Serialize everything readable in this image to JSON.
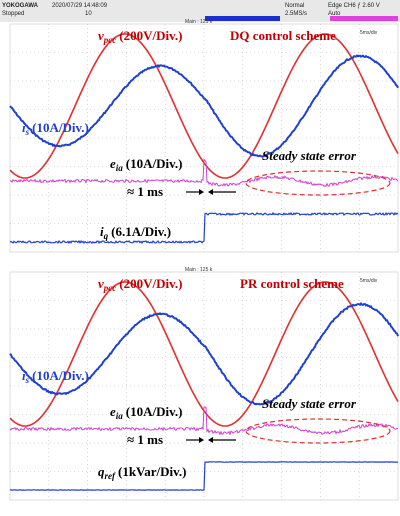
{
  "header": {
    "brand": "YOKOGAWA",
    "datetime": "2020/07/29 14:48:09",
    "status": "Stopped",
    "count": "10",
    "mode": "Normal",
    "rate": "2.5MS/s",
    "trigger": "Edge CH6 ƒ 2.60 V",
    "trigger_mode": "Auto"
  },
  "panels": [
    {
      "main": "Main : 125 k",
      "timebase": "5ms/div",
      "scheme": "DQ control scheme",
      "v_label": {
        "symbol": "v",
        "sub": "pcc",
        "scale": "(200V/Div.)"
      },
      "i_label": {
        "symbol": "i",
        "sub": "s",
        "scale": "(10A/Div.)"
      },
      "e_label": {
        "symbol": "e",
        "sub": "ia",
        "scale": "(10A/Div.)"
      },
      "error": "Steady state error",
      "delay": "≈ 1 ms",
      "step_label": {
        "symbol": "i",
        "sub": "q",
        "scale": "(6.1A/Div.)"
      }
    },
    {
      "main": "Main : 125 k",
      "timebase": "5ms/div",
      "scheme": "PR control scheme",
      "v_label": {
        "symbol": "v",
        "sub": "pcc",
        "scale": "(200V/Div.)"
      },
      "i_label": {
        "symbol": "i",
        "sub": "s",
        "scale": "(10A/Div.)"
      },
      "e_label": {
        "symbol": "e",
        "sub": "ia",
        "scale": "(10A/Div.)"
      },
      "error": "Steady state error",
      "delay": "≈ 1 ms",
      "step_label": {
        "symbol": "q",
        "sub": "ref",
        "scale": "(1kVar/Div.)"
      }
    }
  ]
}
